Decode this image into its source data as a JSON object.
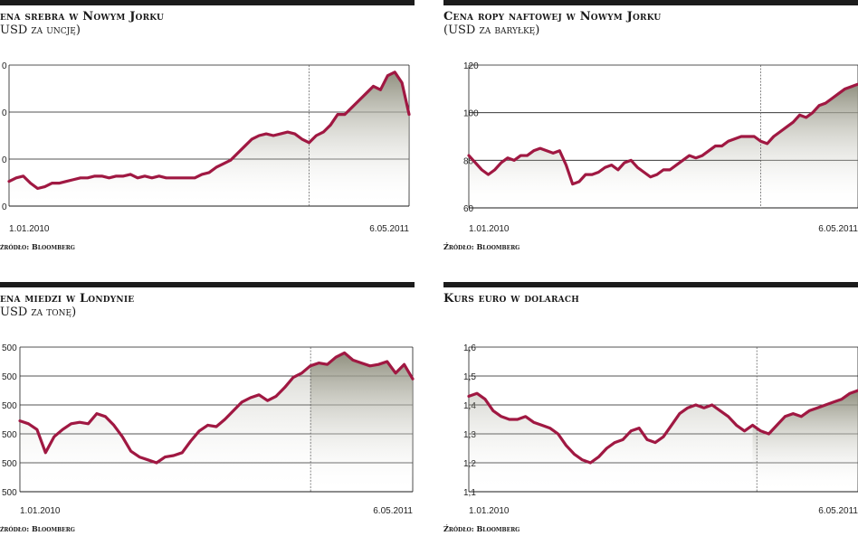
{
  "charts": [
    {
      "title": "ena srebra w Nowym Jorku",
      "subtitle": "USD za uncję)",
      "source": "źródło: Bloomberg",
      "chart_data": {
        "type": "area",
        "title": "ena srebra w Nowym Jorku",
        "xlabel": "",
        "ylabel": "",
        "x_tick_labels": [
          "1.01.2010",
          "6.05.2011"
        ],
        "y_tick_labels": [
          "0",
          "0",
          "0",
          "0"
        ],
        "ylim": [
          10,
          50
        ],
        "grid": true,
        "series": [
          {
            "values": [
              17,
              18,
              18.5,
              16.5,
              15,
              15.5,
              16.5,
              16.5,
              17,
              17.5,
              18,
              18,
              18.5,
              18.5,
              18,
              18.5,
              18.5,
              19,
              18,
              18.5,
              18,
              18.5,
              18,
              18,
              18,
              18,
              18,
              19,
              19.5,
              21,
              22,
              23,
              25,
              27,
              29,
              30,
              30.5,
              30,
              30.5,
              31,
              30.5,
              29,
              28,
              30,
              31,
              33,
              36,
              36,
              38,
              40,
              42,
              44,
              43,
              47,
              48,
              45,
              36
            ]
          }
        ]
      }
    },
    {
      "title": "Cena ropy naftowej w Nowym Jorku",
      "subtitle": "(USD za baryłkę)",
      "source": "Źródło: Bloomberg",
      "chart_data": {
        "type": "area",
        "title": "Cena ropy naftowej w Nowym Jorku",
        "xlabel": "",
        "ylabel": "",
        "x_tick_labels": [
          "1.01.2010",
          "6.05.2011"
        ],
        "y_tick_labels": [
          "60",
          "80",
          "100",
          "120"
        ],
        "ylim": [
          60,
          120
        ],
        "grid": true,
        "series": [
          {
            "values": [
              82,
              79,
              76,
              74,
              76,
              79,
              81,
              80,
              82,
              82,
              84,
              85,
              84,
              83,
              84,
              78,
              70,
              71,
              74,
              74,
              75,
              77,
              78,
              76,
              79,
              80,
              77,
              75,
              73,
              74,
              76,
              76,
              78,
              80,
              82,
              81,
              82,
              84,
              86,
              86,
              88,
              89,
              90,
              90,
              90,
              88,
              87,
              90,
              92,
              94,
              96,
              99,
              98,
              100,
              103,
              104,
              106,
              108,
              110,
              111,
              112
            ]
          }
        ]
      }
    },
    {
      "title": "ena miedzi w Londynie",
      "subtitle": "USD za tonę)",
      "source": "źródło: Bloomberg",
      "chart_data": {
        "type": "area",
        "title": "ena miedzi w Londynie",
        "xlabel": "",
        "ylabel": "",
        "x_tick_labels": [
          "1.01.2010",
          "6.05.2011"
        ],
        "y_tick_labels": [
          "500",
          "500",
          "500",
          "500",
          "500",
          "500"
        ],
        "ylim": [
          0,
          10
        ],
        "grid": true,
        "series": [
          {
            "values": [
              4.9,
              4.7,
              4.3,
              2.7,
              3.8,
              4.3,
              4.7,
              4.8,
              4.7,
              5.4,
              5.2,
              4.6,
              3.8,
              2.8,
              2.4,
              2.2,
              2.0,
              2.4,
              2.5,
              2.7,
              3.5,
              4.2,
              4.6,
              4.5,
              5.0,
              5.6,
              6.2,
              6.5,
              6.7,
              6.3,
              6.6,
              7.2,
              7.9,
              8.2,
              8.7,
              8.9,
              8.8,
              9.3,
              9.6,
              9.1,
              8.9,
              8.7,
              8.8,
              9.0,
              8.2,
              8.8,
              7.8
            ]
          }
        ]
      }
    },
    {
      "title": "Kurs euro w dolarach",
      "subtitle": "",
      "source": "Źródło: Bloomberg",
      "chart_data": {
        "type": "area",
        "title": "Kurs euro w dolarach",
        "xlabel": "",
        "ylabel": "",
        "x_tick_labels": [
          "1.01.2010",
          "6.05.2011"
        ],
        "y_tick_labels": [
          "1,1",
          "1,2",
          "1,3",
          "1,4",
          "1,5",
          "1,6"
        ],
        "ylim": [
          1.1,
          1.6
        ],
        "grid": true,
        "series": [
          {
            "values": [
              1.43,
              1.44,
              1.42,
              1.38,
              1.36,
              1.35,
              1.35,
              1.36,
              1.34,
              1.33,
              1.32,
              1.3,
              1.26,
              1.23,
              1.21,
              1.2,
              1.22,
              1.25,
              1.27,
              1.28,
              1.31,
              1.32,
              1.28,
              1.27,
              1.29,
              1.33,
              1.37,
              1.39,
              1.4,
              1.39,
              1.4,
              1.38,
              1.36,
              1.33,
              1.31,
              1.33,
              1.31,
              1.3,
              1.33,
              1.36,
              1.37,
              1.36,
              1.38,
              1.39,
              1.4,
              1.41,
              1.42,
              1.44,
              1.45
            ]
          }
        ]
      }
    }
  ],
  "colors": {
    "line": "#a01842",
    "grid": "#1a1a1a",
    "fill_top": "#8a8a78",
    "fill_bottom": "#ffffff"
  }
}
